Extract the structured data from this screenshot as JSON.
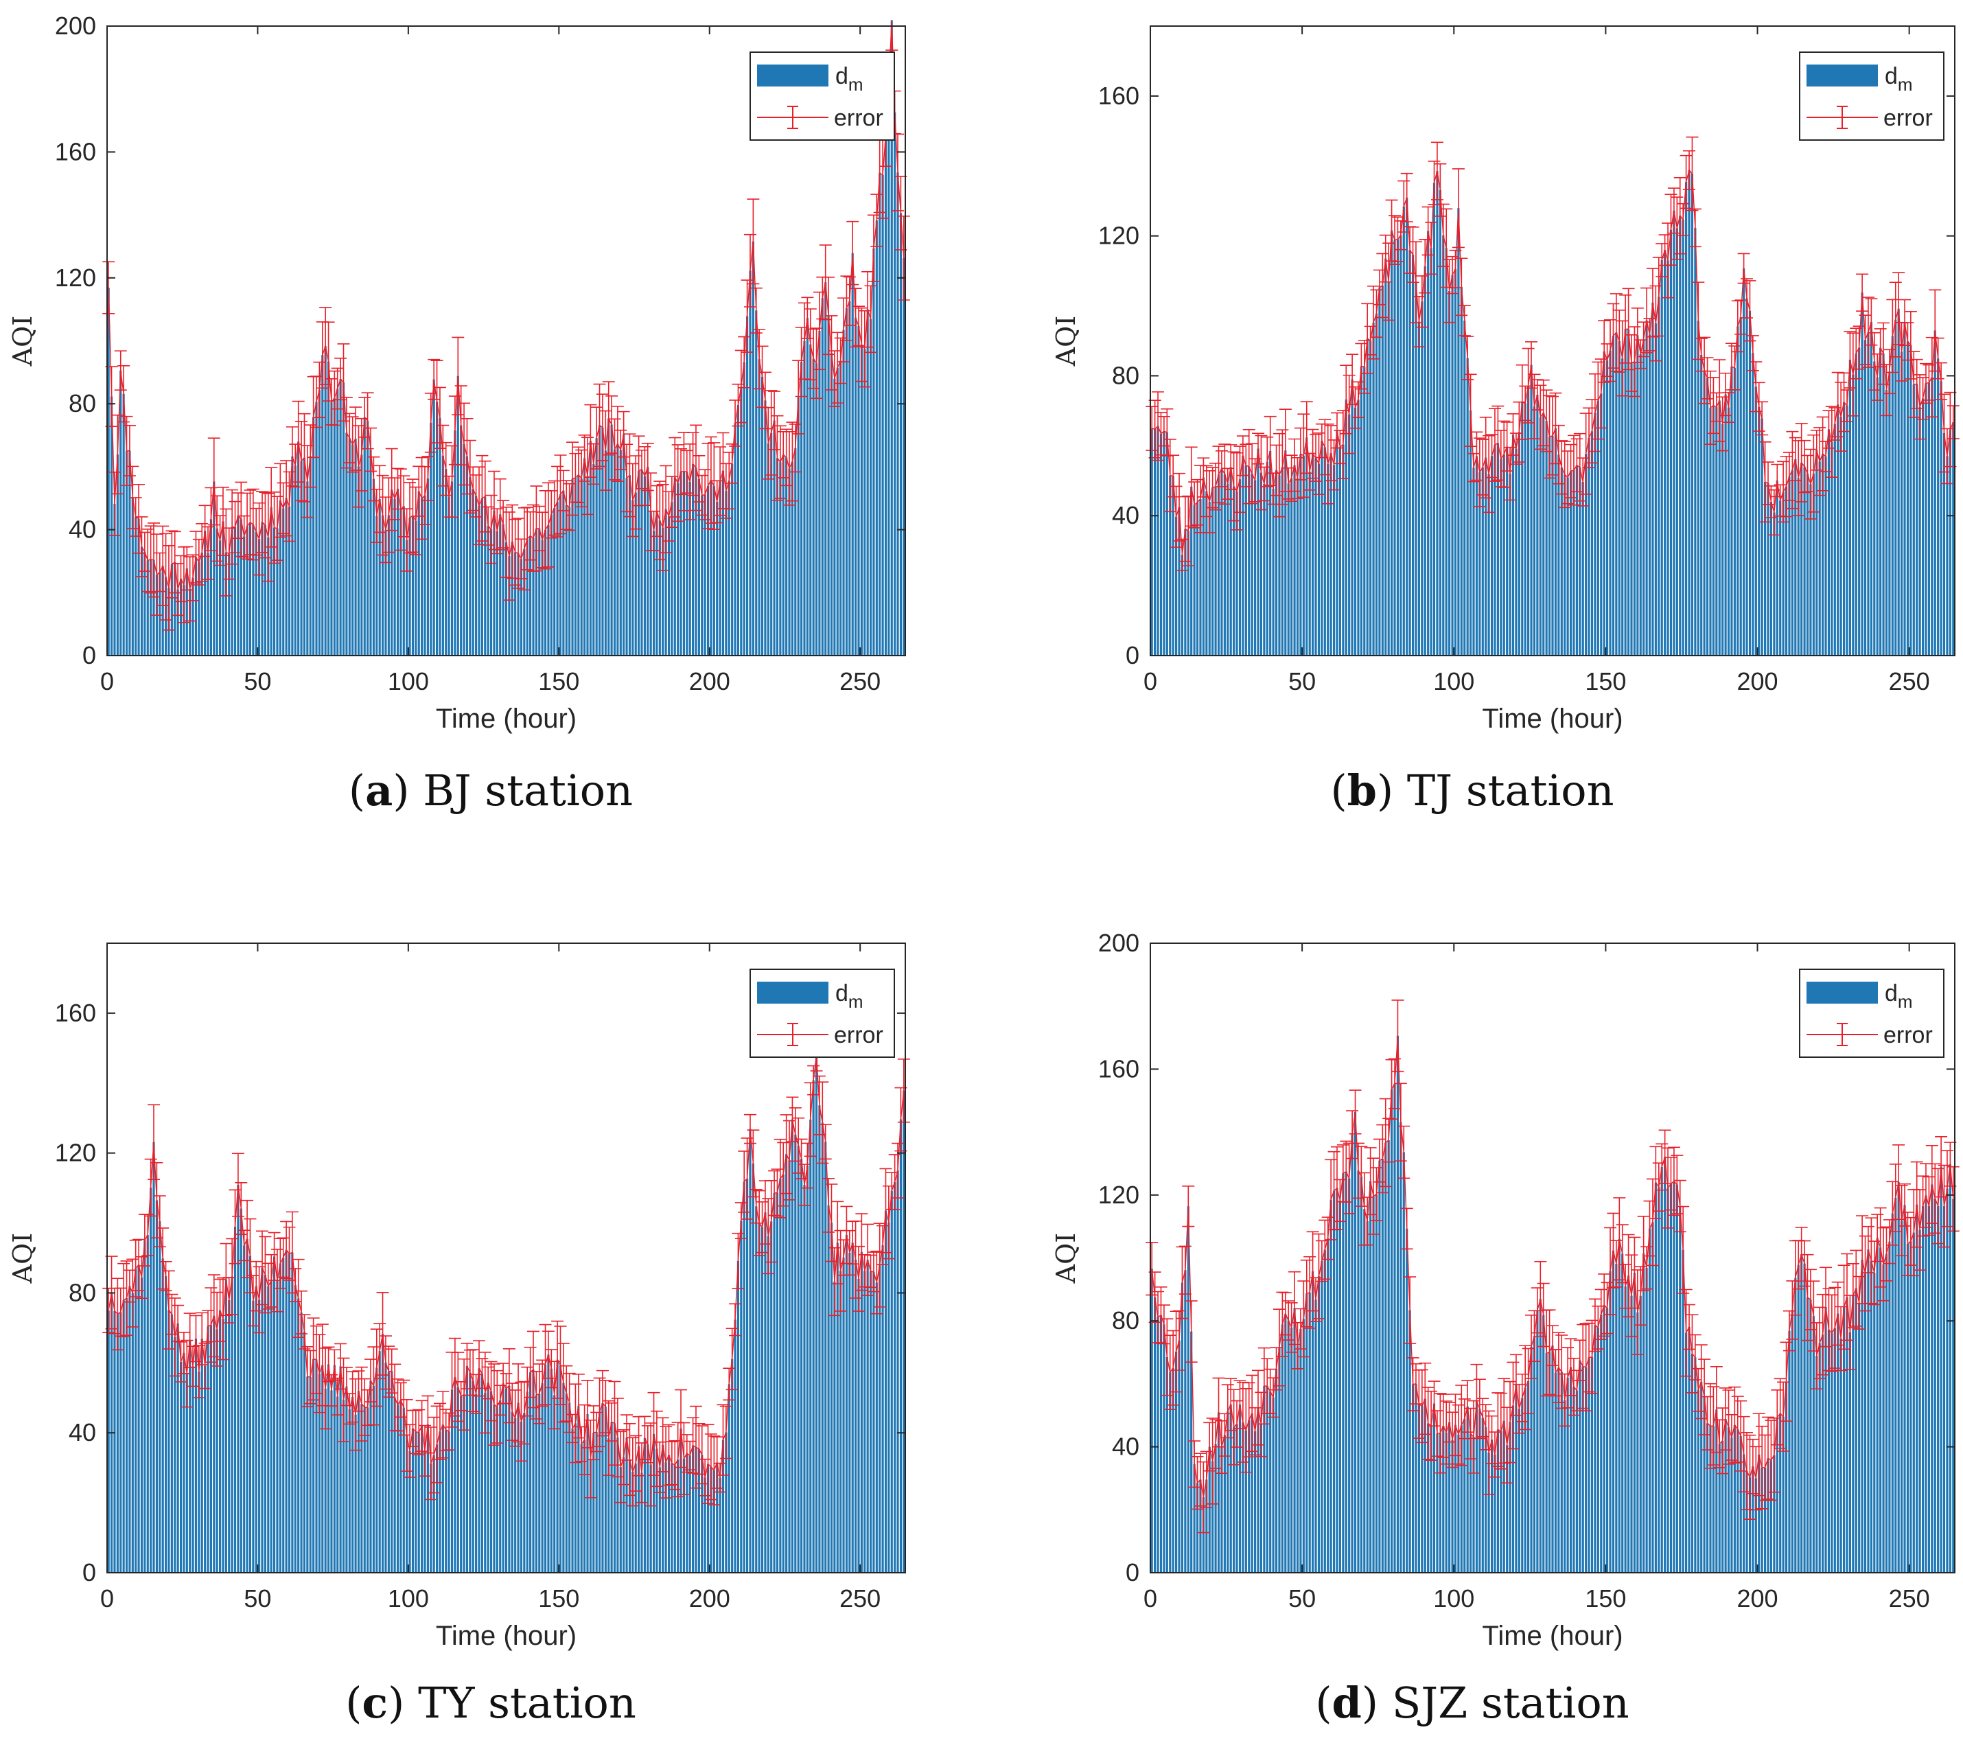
{
  "colors": {
    "bar": "#1f77b4",
    "error": "#e8202a",
    "axis": "#262626"
  },
  "chart_data": [
    {
      "type": "bar",
      "caption_letter": "a",
      "caption_text": "BJ station",
      "xlabel": "Time (hour)",
      "ylabel": "AQI",
      "xlim": [
        0,
        265
      ],
      "ylim": [
        0,
        200
      ],
      "xticks": [
        0,
        50,
        100,
        150,
        200,
        250
      ],
      "yticks": [
        0,
        40,
        80,
        120,
        160,
        200
      ],
      "legend": {
        "position": "top-right",
        "bar_label": "d",
        "bar_sub": "m",
        "error_label": "error"
      },
      "grid": false,
      "keypoints": [
        [
          0,
          120
        ],
        [
          2,
          50
        ],
        [
          4,
          88
        ],
        [
          6,
          70
        ],
        [
          8,
          55
        ],
        [
          10,
          40
        ],
        [
          13,
          32
        ],
        [
          16,
          27
        ],
        [
          20,
          26
        ],
        [
          25,
          27
        ],
        [
          30,
          26
        ],
        [
          33,
          38
        ],
        [
          35,
          52
        ],
        [
          37,
          40
        ],
        [
          40,
          35
        ],
        [
          45,
          42
        ],
        [
          50,
          40
        ],
        [
          55,
          45
        ],
        [
          60,
          50
        ],
        [
          63,
          72
        ],
        [
          66,
          58
        ],
        [
          70,
          88
        ],
        [
          72,
          102
        ],
        [
          74,
          82
        ],
        [
          76,
          90
        ],
        [
          80,
          72
        ],
        [
          83,
          62
        ],
        [
          86,
          74
        ],
        [
          88,
          52
        ],
        [
          92,
          44
        ],
        [
          95,
          50
        ],
        [
          99,
          40
        ],
        [
          103,
          50
        ],
        [
          106,
          56
        ],
        [
          108,
          88
        ],
        [
          111,
          62
        ],
        [
          114,
          52
        ],
        [
          116,
          86
        ],
        [
          118,
          68
        ],
        [
          122,
          56
        ],
        [
          126,
          42
        ],
        [
          130,
          40
        ],
        [
          135,
          33
        ],
        [
          140,
          38
        ],
        [
          145,
          40
        ],
        [
          150,
          48
        ],
        [
          155,
          55
        ],
        [
          160,
          64
        ],
        [
          165,
          70
        ],
        [
          170,
          68
        ],
        [
          175,
          50
        ],
        [
          178,
          62
        ],
        [
          182,
          40
        ],
        [
          186,
          50
        ],
        [
          190,
          62
        ],
        [
          195,
          58
        ],
        [
          200,
          50
        ],
        [
          205,
          56
        ],
        [
          208,
          72
        ],
        [
          211,
          92
        ],
        [
          214,
          130
        ],
        [
          216,
          92
        ],
        [
          219,
          72
        ],
        [
          222,
          68
        ],
        [
          226,
          55
        ],
        [
          229,
          80
        ],
        [
          232,
          102
        ],
        [
          235,
          95
        ],
        [
          238,
          120
        ],
        [
          241,
          85
        ],
        [
          244,
          102
        ],
        [
          247,
          122
        ],
        [
          250,
          95
        ],
        [
          253,
          112
        ],
        [
          256,
          148
        ],
        [
          258,
          168
        ],
        [
          260,
          196
        ],
        [
          262,
          155
        ],
        [
          264,
          125
        ]
      ],
      "noise": 6,
      "err": [
        6,
        14
      ],
      "seed": 11
    },
    {
      "type": "bar",
      "caption_letter": "b",
      "caption_text": "TJ station",
      "xlabel": "Time (hour)",
      "ylabel": "AQI",
      "xlim": [
        0,
        265
      ],
      "ylim": [
        0,
        180
      ],
      "xticks": [
        0,
        50,
        100,
        150,
        200,
        250
      ],
      "yticks": [
        0,
        40,
        80,
        120,
        160
      ],
      "legend": {
        "position": "top-right",
        "bar_label": "d",
        "bar_sub": "m",
        "error_label": "error"
      },
      "grid": false,
      "keypoints": [
        [
          0,
          68
        ],
        [
          5,
          60
        ],
        [
          10,
          32
        ],
        [
          13,
          45
        ],
        [
          18,
          50
        ],
        [
          22,
          48
        ],
        [
          28,
          52
        ],
        [
          35,
          55
        ],
        [
          42,
          52
        ],
        [
          48,
          55
        ],
        [
          55,
          60
        ],
        [
          60,
          60
        ],
        [
          65,
          70
        ],
        [
          70,
          85
        ],
        [
          75,
          100
        ],
        [
          80,
          120
        ],
        [
          84,
          125
        ],
        [
          88,
          100
        ],
        [
          92,
          122
        ],
        [
          94,
          138
        ],
        [
          96,
          120
        ],
        [
          99,
          104
        ],
        [
          101,
          126
        ],
        [
          103,
          96
        ],
        [
          106,
          55
        ],
        [
          110,
          58
        ],
        [
          115,
          55
        ],
        [
          120,
          60
        ],
        [
          125,
          82
        ],
        [
          128,
          65
        ],
        [
          133,
          60
        ],
        [
          138,
          48
        ],
        [
          142,
          55
        ],
        [
          146,
          70
        ],
        [
          150,
          90
        ],
        [
          155,
          88
        ],
        [
          160,
          90
        ],
        [
          165,
          95
        ],
        [
          170,
          118
        ],
        [
          174,
          128
        ],
        [
          178,
          138
        ],
        [
          180,
          100
        ],
        [
          184,
          65
        ],
        [
          188,
          70
        ],
        [
          192,
          82
        ],
        [
          195,
          108
        ],
        [
          198,
          90
        ],
        [
          202,
          55
        ],
        [
          205,
          45
        ],
        [
          208,
          52
        ],
        [
          212,
          58
        ],
        [
          215,
          52
        ],
        [
          220,
          58
        ],
        [
          225,
          65
        ],
        [
          230,
          80
        ],
        [
          234,
          98
        ],
        [
          238,
          88
        ],
        [
          242,
          78
        ],
        [
          246,
          95
        ],
        [
          250,
          85
        ],
        [
          254,
          72
        ],
        [
          258,
          90
        ],
        [
          262,
          62
        ],
        [
          265,
          64
        ]
      ],
      "noise": 6,
      "err": [
        4,
        12
      ],
      "seed": 23
    },
    {
      "type": "bar",
      "caption_letter": "c",
      "caption_text": "TY station",
      "xlabel": "Time (hour)",
      "ylabel": "AQI",
      "xlim": [
        0,
        265
      ],
      "ylim": [
        0,
        180
      ],
      "xticks": [
        0,
        50,
        100,
        150,
        200,
        250
      ],
      "yticks": [
        0,
        40,
        80,
        120,
        160
      ],
      "legend": {
        "position": "top-right",
        "bar_label": "d",
        "bar_sub": "m",
        "error_label": "error"
      },
      "grid": false,
      "keypoints": [
        [
          0,
          78
        ],
        [
          4,
          80
        ],
        [
          8,
          82
        ],
        [
          12,
          92
        ],
        [
          15,
          120
        ],
        [
          17,
          96
        ],
        [
          20,
          80
        ],
        [
          24,
          62
        ],
        [
          28,
          60
        ],
        [
          32,
          65
        ],
        [
          36,
          72
        ],
        [
          40,
          80
        ],
        [
          43,
          112
        ],
        [
          45,
          98
        ],
        [
          48,
          80
        ],
        [
          52,
          82
        ],
        [
          56,
          88
        ],
        [
          60,
          96
        ],
        [
          63,
          82
        ],
        [
          66,
          60
        ],
        [
          70,
          54
        ],
        [
          75,
          55
        ],
        [
          80,
          52
        ],
        [
          85,
          48
        ],
        [
          88,
          52
        ],
        [
          91,
          68
        ],
        [
          94,
          60
        ],
        [
          97,
          45
        ],
        [
          100,
          36
        ],
        [
          105,
          38
        ],
        [
          110,
          35
        ],
        [
          115,
          50
        ],
        [
          120,
          55
        ],
        [
          125,
          55
        ],
        [
          130,
          52
        ],
        [
          135,
          45
        ],
        [
          140,
          55
        ],
        [
          145,
          58
        ],
        [
          150,
          55
        ],
        [
          155,
          45
        ],
        [
          160,
          38
        ],
        [
          165,
          45
        ],
        [
          170,
          36
        ],
        [
          175,
          32
        ],
        [
          180,
          34
        ],
        [
          185,
          35
        ],
        [
          190,
          36
        ],
        [
          195,
          34
        ],
        [
          200,
          28
        ],
        [
          204,
          34
        ],
        [
          207,
          60
        ],
        [
          210,
          95
        ],
        [
          213,
          130
        ],
        [
          216,
          95
        ],
        [
          220,
          100
        ],
        [
          224,
          118
        ],
        [
          228,
          128
        ],
        [
          231,
          112
        ],
        [
          235,
          145
        ],
        [
          238,
          120
        ],
        [
          241,
          88
        ],
        [
          245,
          95
        ],
        [
          250,
          86
        ],
        [
          254,
          85
        ],
        [
          258,
          100
        ],
        [
          261,
          110
        ],
        [
          264,
          140
        ]
      ],
      "noise": 6,
      "err": [
        4,
        12
      ],
      "seed": 37
    },
    {
      "type": "bar",
      "caption_letter": "d",
      "caption_text": "SJZ station",
      "xlabel": "Time (hour)",
      "ylabel": "AQI",
      "xlim": [
        0,
        265
      ],
      "ylim": [
        0,
        200
      ],
      "xticks": [
        0,
        50,
        100,
        150,
        200,
        250
      ],
      "yticks": [
        0,
        40,
        80,
        120,
        160,
        200
      ],
      "legend": {
        "position": "top-right",
        "bar_label": "d",
        "bar_sub": "m",
        "error_label": "error"
      },
      "grid": false,
      "keypoints": [
        [
          0,
          100
        ],
        [
          3,
          80
        ],
        [
          6,
          68
        ],
        [
          9,
          72
        ],
        [
          12,
          118
        ],
        [
          14,
          40
        ],
        [
          16,
          25
        ],
        [
          19,
          38
        ],
        [
          22,
          45
        ],
        [
          26,
          50
        ],
        [
          30,
          48
        ],
        [
          35,
          52
        ],
        [
          40,
          62
        ],
        [
          44,
          88
        ],
        [
          48,
          78
        ],
        [
          52,
          88
        ],
        [
          56,
          98
        ],
        [
          60,
          122
        ],
        [
          64,
          125
        ],
        [
          67,
          140
        ],
        [
          70,
          115
        ],
        [
          74,
          120
        ],
        [
          78,
          140
        ],
        [
          81,
          168
        ],
        [
          83,
          130
        ],
        [
          86,
          60
        ],
        [
          90,
          52
        ],
        [
          95,
          48
        ],
        [
          100,
          48
        ],
        [
          105,
          50
        ],
        [
          110,
          45
        ],
        [
          115,
          40
        ],
        [
          120,
          55
        ],
        [
          125,
          68
        ],
        [
          128,
          82
        ],
        [
          131,
          70
        ],
        [
          135,
          62
        ],
        [
          140,
          60
        ],
        [
          145,
          70
        ],
        [
          150,
          88
        ],
        [
          153,
          104
        ],
        [
          157,
          90
        ],
        [
          161,
          88
        ],
        [
          165,
          115
        ],
        [
          170,
          128
        ],
        [
          173,
          130
        ],
        [
          176,
          80
        ],
        [
          180,
          60
        ],
        [
          184,
          52
        ],
        [
          188,
          45
        ],
        [
          192,
          40
        ],
        [
          196,
          38
        ],
        [
          200,
          32
        ],
        [
          204,
          30
        ],
        [
          208,
          55
        ],
        [
          211,
          80
        ],
        [
          214,
          108
        ],
        [
          218,
          75
        ],
        [
          222,
          78
        ],
        [
          226,
          80
        ],
        [
          230,
          82
        ],
        [
          234,
          95
        ],
        [
          238,
          100
        ],
        [
          242,
          105
        ],
        [
          246,
          120
        ],
        [
          250,
          108
        ],
        [
          254,
          112
        ],
        [
          258,
          120
        ],
        [
          262,
          124
        ],
        [
          265,
          122
        ]
      ],
      "noise": 7,
      "err": [
        6,
        14
      ],
      "seed": 53
    }
  ]
}
